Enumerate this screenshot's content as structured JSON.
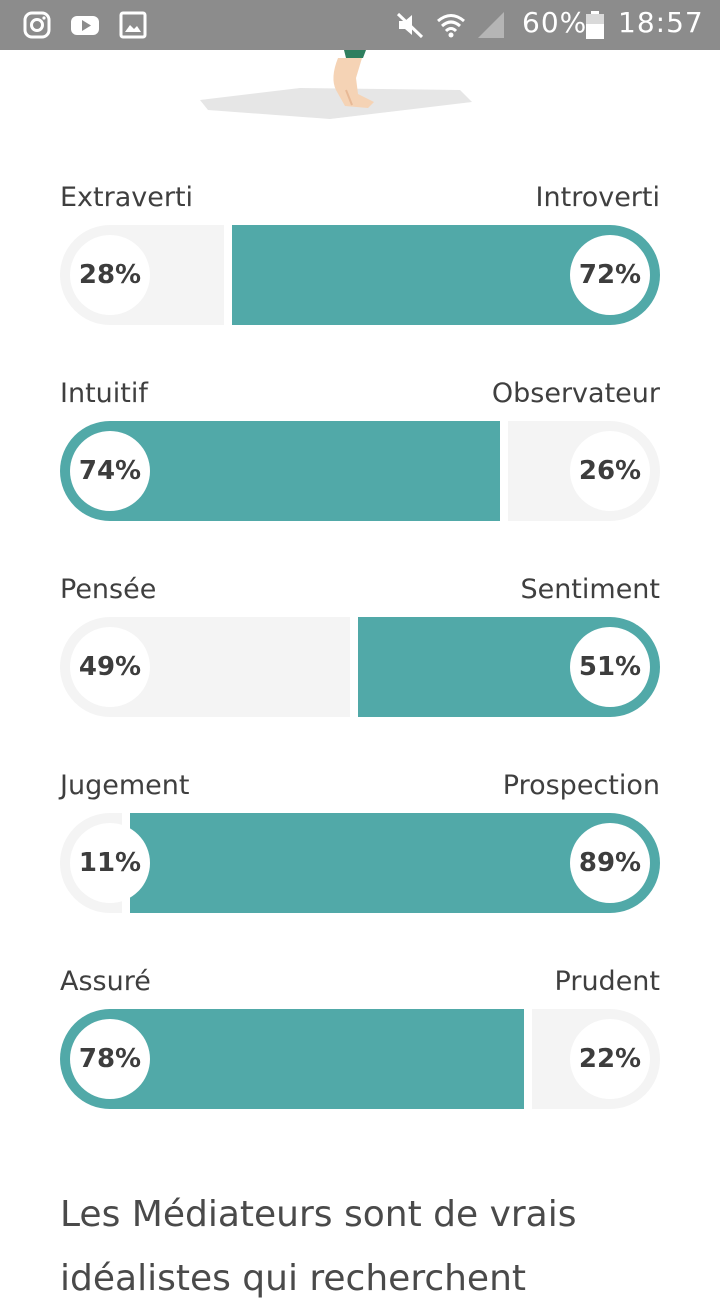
{
  "status_bar": {
    "battery": "60%",
    "time": "18:57",
    "icons": [
      "instagram-icon",
      "youtube-icon",
      "gallery-icon",
      "mute-icon",
      "wifi-icon",
      "signal-icon",
      "battery-icon"
    ]
  },
  "colors": {
    "fill": "#51a9a8",
    "track": "#f4f4f4",
    "status_bar": "#8c8c8c"
  },
  "traits": [
    {
      "left_label": "Extraverti",
      "right_label": "Introverti",
      "left_pct": "28%",
      "right_pct": "72%",
      "left_value": 28,
      "dominant": "right"
    },
    {
      "left_label": "Intuitif",
      "right_label": "Observateur",
      "left_pct": "74%",
      "right_pct": "26%",
      "left_value": 74,
      "dominant": "left"
    },
    {
      "left_label": "Pensée",
      "right_label": "Sentiment",
      "left_pct": "49%",
      "right_pct": "51%",
      "left_value": 49,
      "dominant": "right"
    },
    {
      "left_label": "Jugement",
      "right_label": "Prospection",
      "left_pct": "11%",
      "right_pct": "89%",
      "left_value": 11,
      "dominant": "right"
    },
    {
      "left_label": "Assuré",
      "right_label": "Prudent",
      "left_pct": "78%",
      "right_pct": "22%",
      "left_value": 78,
      "dominant": "left"
    }
  ],
  "description": "Les Médiateurs sont de vrais idéalistes qui recherchent"
}
